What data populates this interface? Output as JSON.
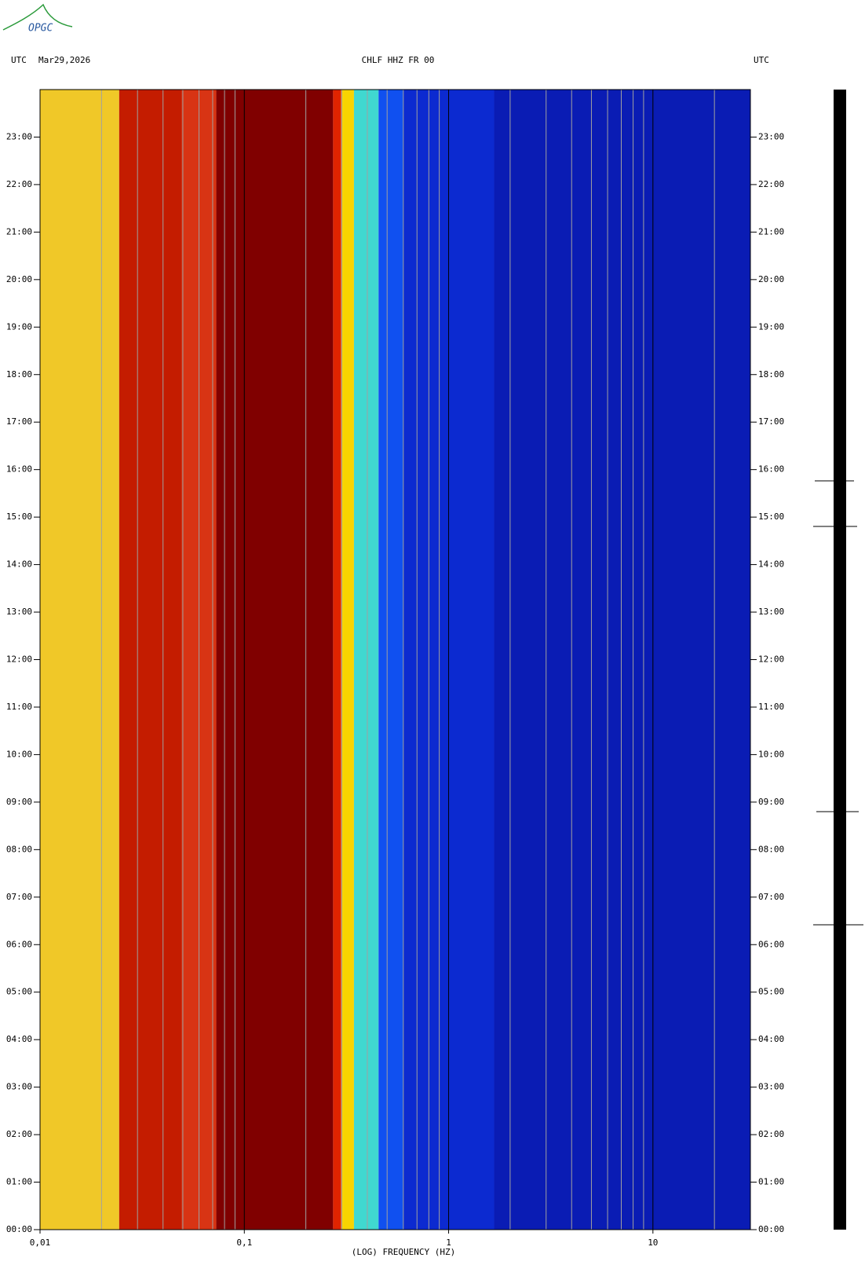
{
  "logo": "OPGC",
  "chart_data": {
    "type": "spectrogram",
    "title": "CHLF HHZ FR 00",
    "time_zone_left": "UTC",
    "date": "Mar29,2026",
    "time_zone_right": "UTC",
    "x_label": "(LOG) FREQUENCY (HZ)",
    "x_log": true,
    "xlim": [
      0.01,
      30
    ],
    "xticks": [
      {
        "value": 0.01,
        "label": "0,01"
      },
      {
        "value": 0.1,
        "label": "0,1"
      },
      1,
      10
    ],
    "minor_xticks": [
      0.02,
      0.03,
      0.04,
      0.05,
      0.06,
      0.07,
      0.08,
      0.09,
      0.2,
      0.3,
      0.4,
      0.5,
      0.6,
      0.7,
      0.8,
      0.9,
      2,
      3,
      4,
      5,
      6,
      7,
      8,
      9,
      20
    ],
    "ylim": [
      0,
      24
    ],
    "yticks": [
      {
        "value": 0,
        "label": "00:00"
      },
      {
        "value": 1,
        "label": "01:00"
      },
      {
        "value": 2,
        "label": "02:00"
      },
      {
        "value": 3,
        "label": "03:00"
      },
      {
        "value": 4,
        "label": "04:00"
      },
      {
        "value": 5,
        "label": "05:00"
      },
      {
        "value": 6,
        "label": "06:00"
      },
      {
        "value": 7,
        "label": "07:00"
      },
      {
        "value": 8,
        "label": "08:00"
      },
      {
        "value": 9,
        "label": "09:00"
      },
      {
        "value": 10,
        "label": "10:00"
      },
      {
        "value": 11,
        "label": "11:00"
      },
      {
        "value": 12,
        "label": "12:00"
      },
      {
        "value": 13,
        "label": "13:00"
      },
      {
        "value": 14,
        "label": "14:00"
      },
      {
        "value": 15,
        "label": "15:00"
      },
      {
        "value": 16,
        "label": "16:00"
      },
      {
        "value": 17,
        "label": "17:00"
      },
      {
        "value": 18,
        "label": "18:00"
      },
      {
        "value": 19,
        "label": "19:00"
      },
      {
        "value": 20,
        "label": "20:00"
      },
      {
        "value": 21,
        "label": "21:00"
      },
      {
        "value": 22,
        "label": "22:00"
      },
      {
        "value": 23,
        "label": "23:00"
      }
    ],
    "bins": [
      0.01,
      0.0244,
      0.0494,
      0.0729,
      0.272,
      0.298,
      0.344,
      0.454,
      0.6,
      1.67,
      30
    ],
    "colors": [
      "#f0c828",
      "#c41c00",
      "#d83414",
      "#800000",
      "#e02400",
      "#f8d400",
      "#40d8d0",
      "#1050f0",
      "#0c2ad0",
      "#0a1cb4"
    ]
  }
}
